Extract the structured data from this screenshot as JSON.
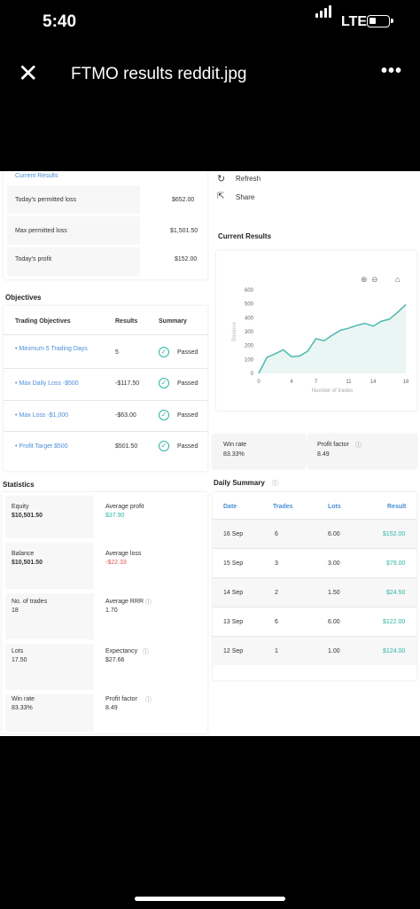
{
  "status_bar": {
    "time": "5:40",
    "network": "LTE"
  },
  "viewer": {
    "title": "FTMO results  reddit.jpg"
  },
  "top_left": {
    "header": "Current Results",
    "rows": [
      {
        "label": "Today's permitted loss",
        "value": "$652.00"
      },
      {
        "label": "Max permitted loss",
        "value": "$1,501.50"
      },
      {
        "label": "Today's profit",
        "value": "$152.00"
      }
    ]
  },
  "actions": {
    "refresh": "Refresh",
    "share": "Share"
  },
  "current_results_title": "Current Results",
  "objectives": {
    "title": "Objectives",
    "headers": {
      "objective": "Trading Objectives",
      "results": "Results",
      "summary": "Summary"
    },
    "rows": [
      {
        "objective": "• Minimum 5 Trading Days",
        "result": "5",
        "status": "Passed"
      },
      {
        "objective": "• Max Daily Loss -$500",
        "result": "-$117.50",
        "status": "Passed"
      },
      {
        "objective": "• Max Loss -$1,000",
        "result": "-$63.00",
        "status": "Passed"
      },
      {
        "objective": "• Profit Target $500",
        "result": "$501.50",
        "status": "Passed"
      }
    ]
  },
  "chart_data": {
    "type": "line",
    "x": [
      0,
      1,
      2,
      3,
      4,
      5,
      6,
      7,
      8,
      9,
      10,
      11,
      12,
      13,
      14,
      15,
      16,
      17,
      18
    ],
    "y": [
      0,
      115,
      140,
      170,
      120,
      125,
      160,
      250,
      235,
      275,
      310,
      325,
      345,
      360,
      340,
      375,
      390,
      440,
      495
    ],
    "xticks": [
      0,
      4,
      7,
      11,
      14,
      18
    ],
    "yticks": [
      0,
      100,
      200,
      300,
      400,
      500,
      600
    ],
    "ylim": [
      0,
      600
    ],
    "xlim": [
      0,
      18
    ],
    "xlabel": "Number of trades",
    "ylabel": "Balance",
    "color": "#4db8ad",
    "fill": "#e9f6f4",
    "grid": false
  },
  "win_profit": {
    "win_rate_label": "Win rate",
    "win_rate": "83.33%",
    "profit_factor_label": "Profit factor",
    "profit_factor": "8.49"
  },
  "statistics": {
    "title": "Statistics",
    "cells": [
      {
        "label": "Equity",
        "value": "$10,501.50"
      },
      {
        "label": "Average profit",
        "value": "$37.90"
      },
      {
        "label": "Balance",
        "value": "$10,501.50"
      },
      {
        "label": "Average loss",
        "value": "-$22.33"
      },
      {
        "label": "No. of trades",
        "value": "18"
      },
      {
        "label": "Average RRR",
        "value": "1.70"
      },
      {
        "label": "Lots",
        "value": "17.50"
      },
      {
        "label": "Expectancy",
        "value": "$27.66"
      },
      {
        "label": "Win rate",
        "value": "83.33%"
      },
      {
        "label": "Profit factor",
        "value": "8.49"
      }
    ]
  },
  "daily_summary": {
    "title": "Daily Summary",
    "headers": [
      "Date",
      "Trades",
      "Lots",
      "Result"
    ],
    "rows": [
      {
        "date": "16 Sep",
        "trades": "6",
        "lots": "6.00",
        "result": "$152.00"
      },
      {
        "date": "15 Sep",
        "trades": "3",
        "lots": "3.00",
        "result": "$79.00"
      },
      {
        "date": "14 Sep",
        "trades": "2",
        "lots": "1.50",
        "result": "$24.50"
      },
      {
        "date": "13 Sep",
        "trades": "6",
        "lots": "6.00",
        "result": "$122.00"
      },
      {
        "date": "12 Sep",
        "trades": "1",
        "lots": "1.00",
        "result": "$124.00"
      }
    ]
  }
}
